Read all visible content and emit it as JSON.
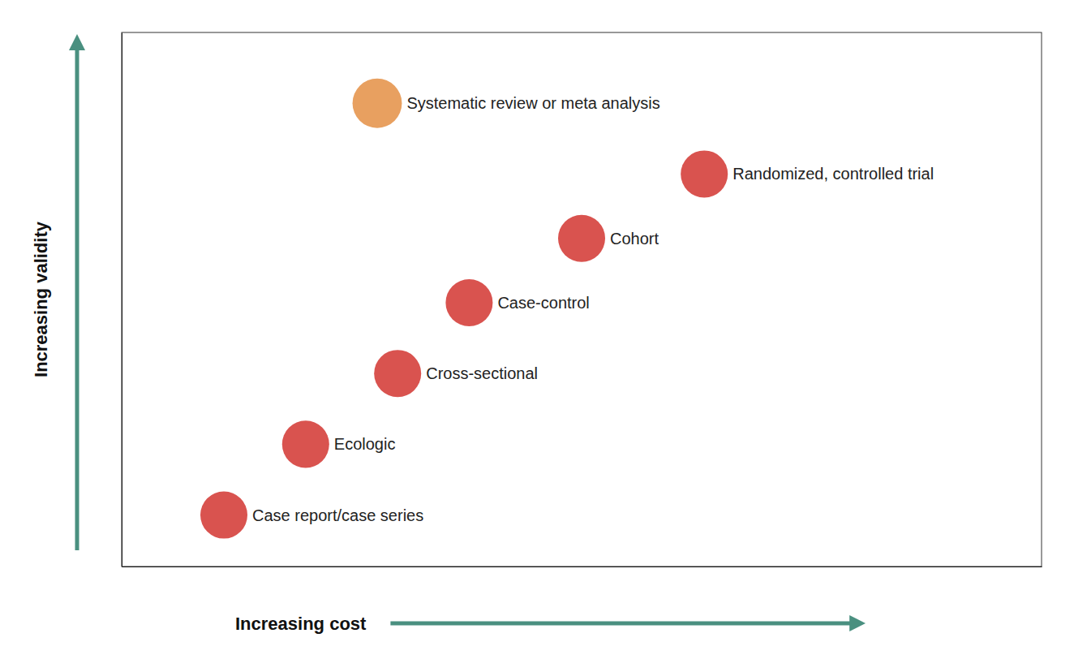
{
  "chart_data": {
    "type": "scatter",
    "x": [
      1.5,
      2.3,
      3.2,
      3.9,
      5.0,
      6.2,
      3.0
    ],
    "values": [
      1.0,
      2.1,
      3.2,
      4.3,
      5.3,
      6.3,
      7.4
    ],
    "sizes": [
      2000,
      2000,
      2000,
      2000,
      2000,
      2000,
      2200
    ],
    "labels": [
      "Case report/case series",
      "Ecologic",
      "Cross-sectional",
      "Case-control",
      "Cohort",
      "Randomized, controlled trial",
      "Systematic review or meta analysis"
    ],
    "colors": [
      "#d9534f",
      "#d9534f",
      "#d9534f",
      "#d9534f",
      "#d9534f",
      "#d9534f",
      "#e8a060"
    ],
    "xlim": [
      0.5,
      9.5
    ],
    "ylim": [
      0.2,
      8.5
    ],
    "xlabel": "Increasing cost",
    "ylabel": "Increasing validity",
    "tick_labels": false,
    "grid": false
  }
}
